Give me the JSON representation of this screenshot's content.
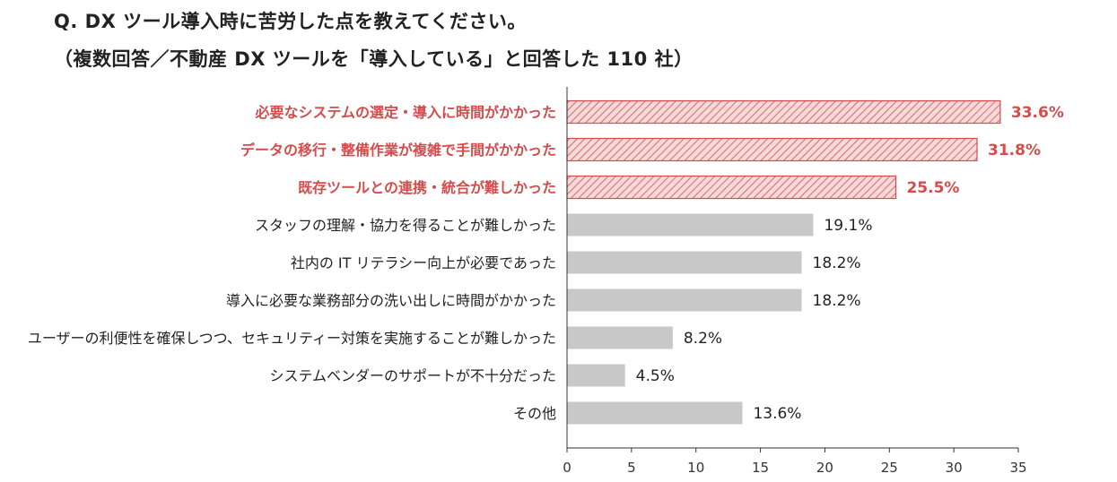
{
  "title_line1": "Q. DX ツール導入時に苦労した点を教えてください。",
  "title_line2": "（複数回答／不動産 DX ツールを「導入している」と回答した 110 社）",
  "colors": {
    "highlight": "#d94a4a",
    "highlight_fill": "#f4d4d4",
    "normal_bar": "#c8c8c8",
    "text": "#222222",
    "axis": "#333333"
  },
  "chart_data": {
    "type": "bar",
    "orientation": "horizontal",
    "title": "Q. DX ツール導入時に苦労した点を教えてください。",
    "subtitle": "（複数回答／不動産 DX ツールを「導入している」と回答した 110 社）",
    "categories": [
      "必要なシステムの選定・導入に時間がかかった",
      "データの移行・整備作業が複雑で手間がかかった",
      "既存ツールとの連携・統合が難しかった",
      "スタッフの理解・協力を得ることが難しかった",
      "社内の IT リテラシー向上が必要であった",
      "導入に必要な業務部分の洗い出しに時間がかかった",
      "ユーザーの利便性を確保しつつ、セキュリティー対策を実施することが難しかった",
      "システムベンダーのサポートが不十分だった",
      "その他"
    ],
    "values": [
      33.6,
      31.8,
      25.5,
      19.1,
      18.2,
      18.2,
      8.2,
      4.5,
      13.6
    ],
    "value_labels": [
      "33.6%",
      "31.8%",
      "25.5%",
      "19.1%",
      "18.2%",
      "18.2%",
      "8.2%",
      "4.5%",
      "13.6%"
    ],
    "highlighted": [
      true,
      true,
      true,
      false,
      false,
      false,
      false,
      false,
      false
    ],
    "xlim": [
      0,
      35
    ],
    "xticks": [
      0,
      5,
      10,
      15,
      20,
      25,
      30,
      35
    ],
    "xtick_labels": [
      "0",
      "5",
      "10",
      "15",
      "20",
      "25",
      "30",
      "35"
    ],
    "xlabel": "",
    "ylabel": "",
    "grid": false
  }
}
